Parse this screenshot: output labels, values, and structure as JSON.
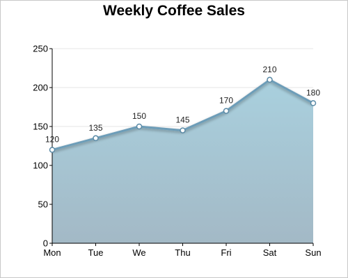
{
  "chart_data": {
    "type": "area",
    "title": "Weekly Coffee Sales",
    "xlabel": "",
    "ylabel": "",
    "categories": [
      "Mon",
      "Tue",
      "We",
      "Thu",
      "Fri",
      "Sat",
      "Sun"
    ],
    "values": [
      120,
      135,
      150,
      145,
      170,
      210,
      180
    ],
    "ylim": [
      0,
      250
    ],
    "yticks": [
      0,
      50,
      100,
      150,
      200,
      250
    ],
    "grid": true,
    "legend": "none",
    "colors": {
      "line": "#6d9db8",
      "area_top": "#a9d0de",
      "area_bottom": "#a3b9c6",
      "marker_fill": "#ffffff",
      "marker_stroke": "#5a8aa6",
      "grid": "#e6e6e6",
      "axis": "#000000"
    }
  }
}
